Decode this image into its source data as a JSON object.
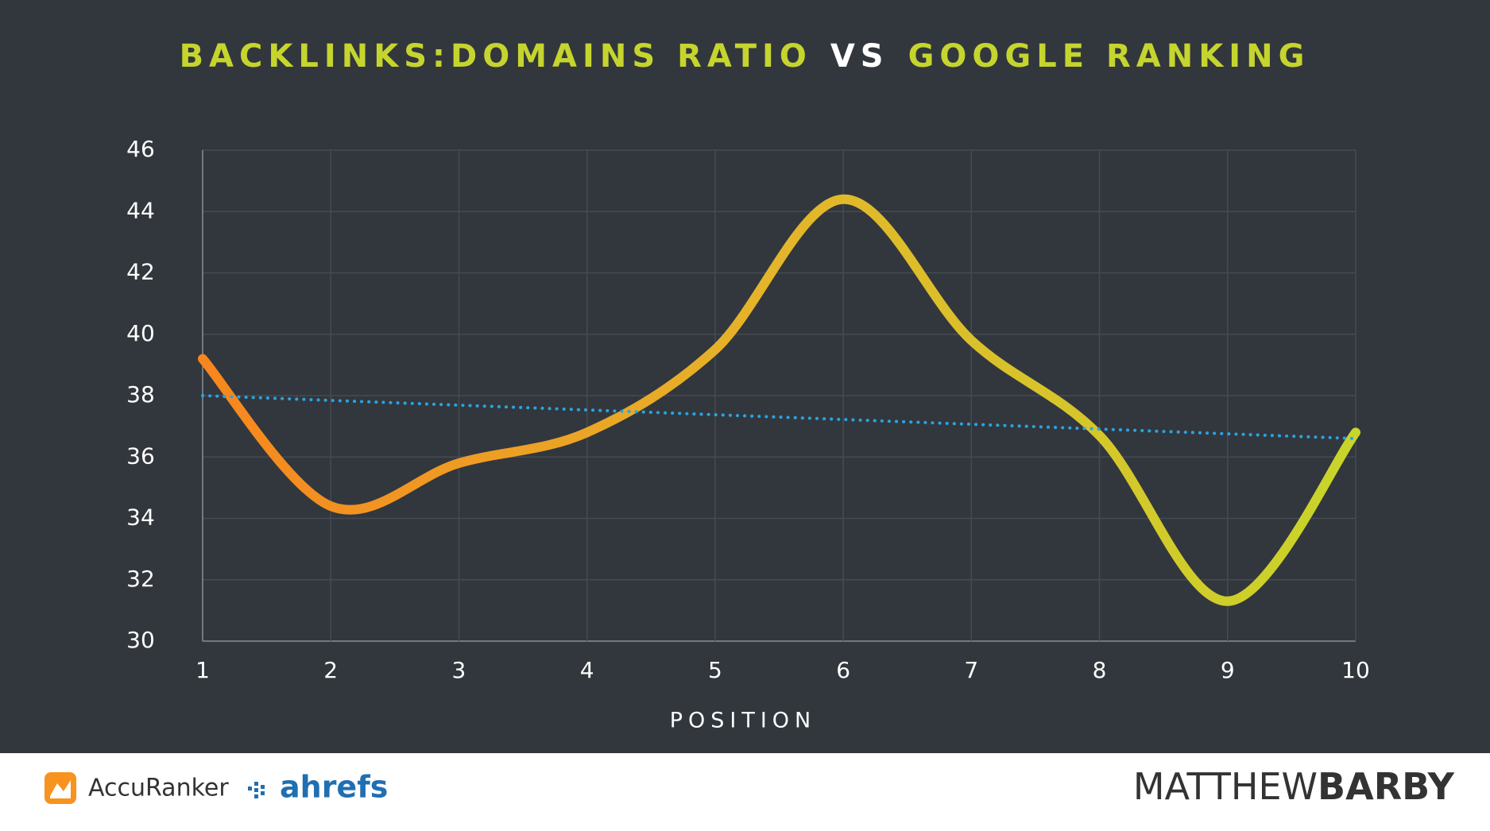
{
  "chart_data": {
    "type": "line",
    "title_parts": [
      {
        "text": "BACKLINKS:DOMAINS RATIO",
        "color": "#c5d52e"
      },
      {
        "text": "VS",
        "color": "#ffffff"
      },
      {
        "text": "GOOGLE RANKING",
        "color": "#c5d52e"
      }
    ],
    "x_label": "POSITION",
    "x": [
      1,
      2,
      3,
      4,
      5,
      6,
      7,
      8,
      9,
      10
    ],
    "series": [
      {
        "colors": [
          "#f7861e",
          "#e4b52a",
          "#c8d52a"
        ],
        "values": [
          39.2,
          34.4,
          35.8,
          36.8,
          39.5,
          44.4,
          39.8,
          36.7,
          31.3,
          36.8
        ]
      },
      {
        "color": "#2aa3e0",
        "style": "dotted",
        "x": [
          1,
          10
        ],
        "values": [
          38,
          36.6
        ]
      }
    ],
    "xlim": [
      1,
      10
    ],
    "xticks": [
      1,
      2,
      3,
      4,
      5,
      6,
      7,
      8,
      9,
      10
    ],
    "ylim": [
      30,
      46
    ],
    "yticks": [
      30,
      32,
      34,
      36,
      38,
      40,
      42,
      44,
      46
    ],
    "grid": true
  },
  "footer": {
    "left_logo": "AccuRanker",
    "middle_logo": "ahrefs",
    "right_logo_light": "MATTHEW",
    "right_logo_bold": "BARBY"
  }
}
